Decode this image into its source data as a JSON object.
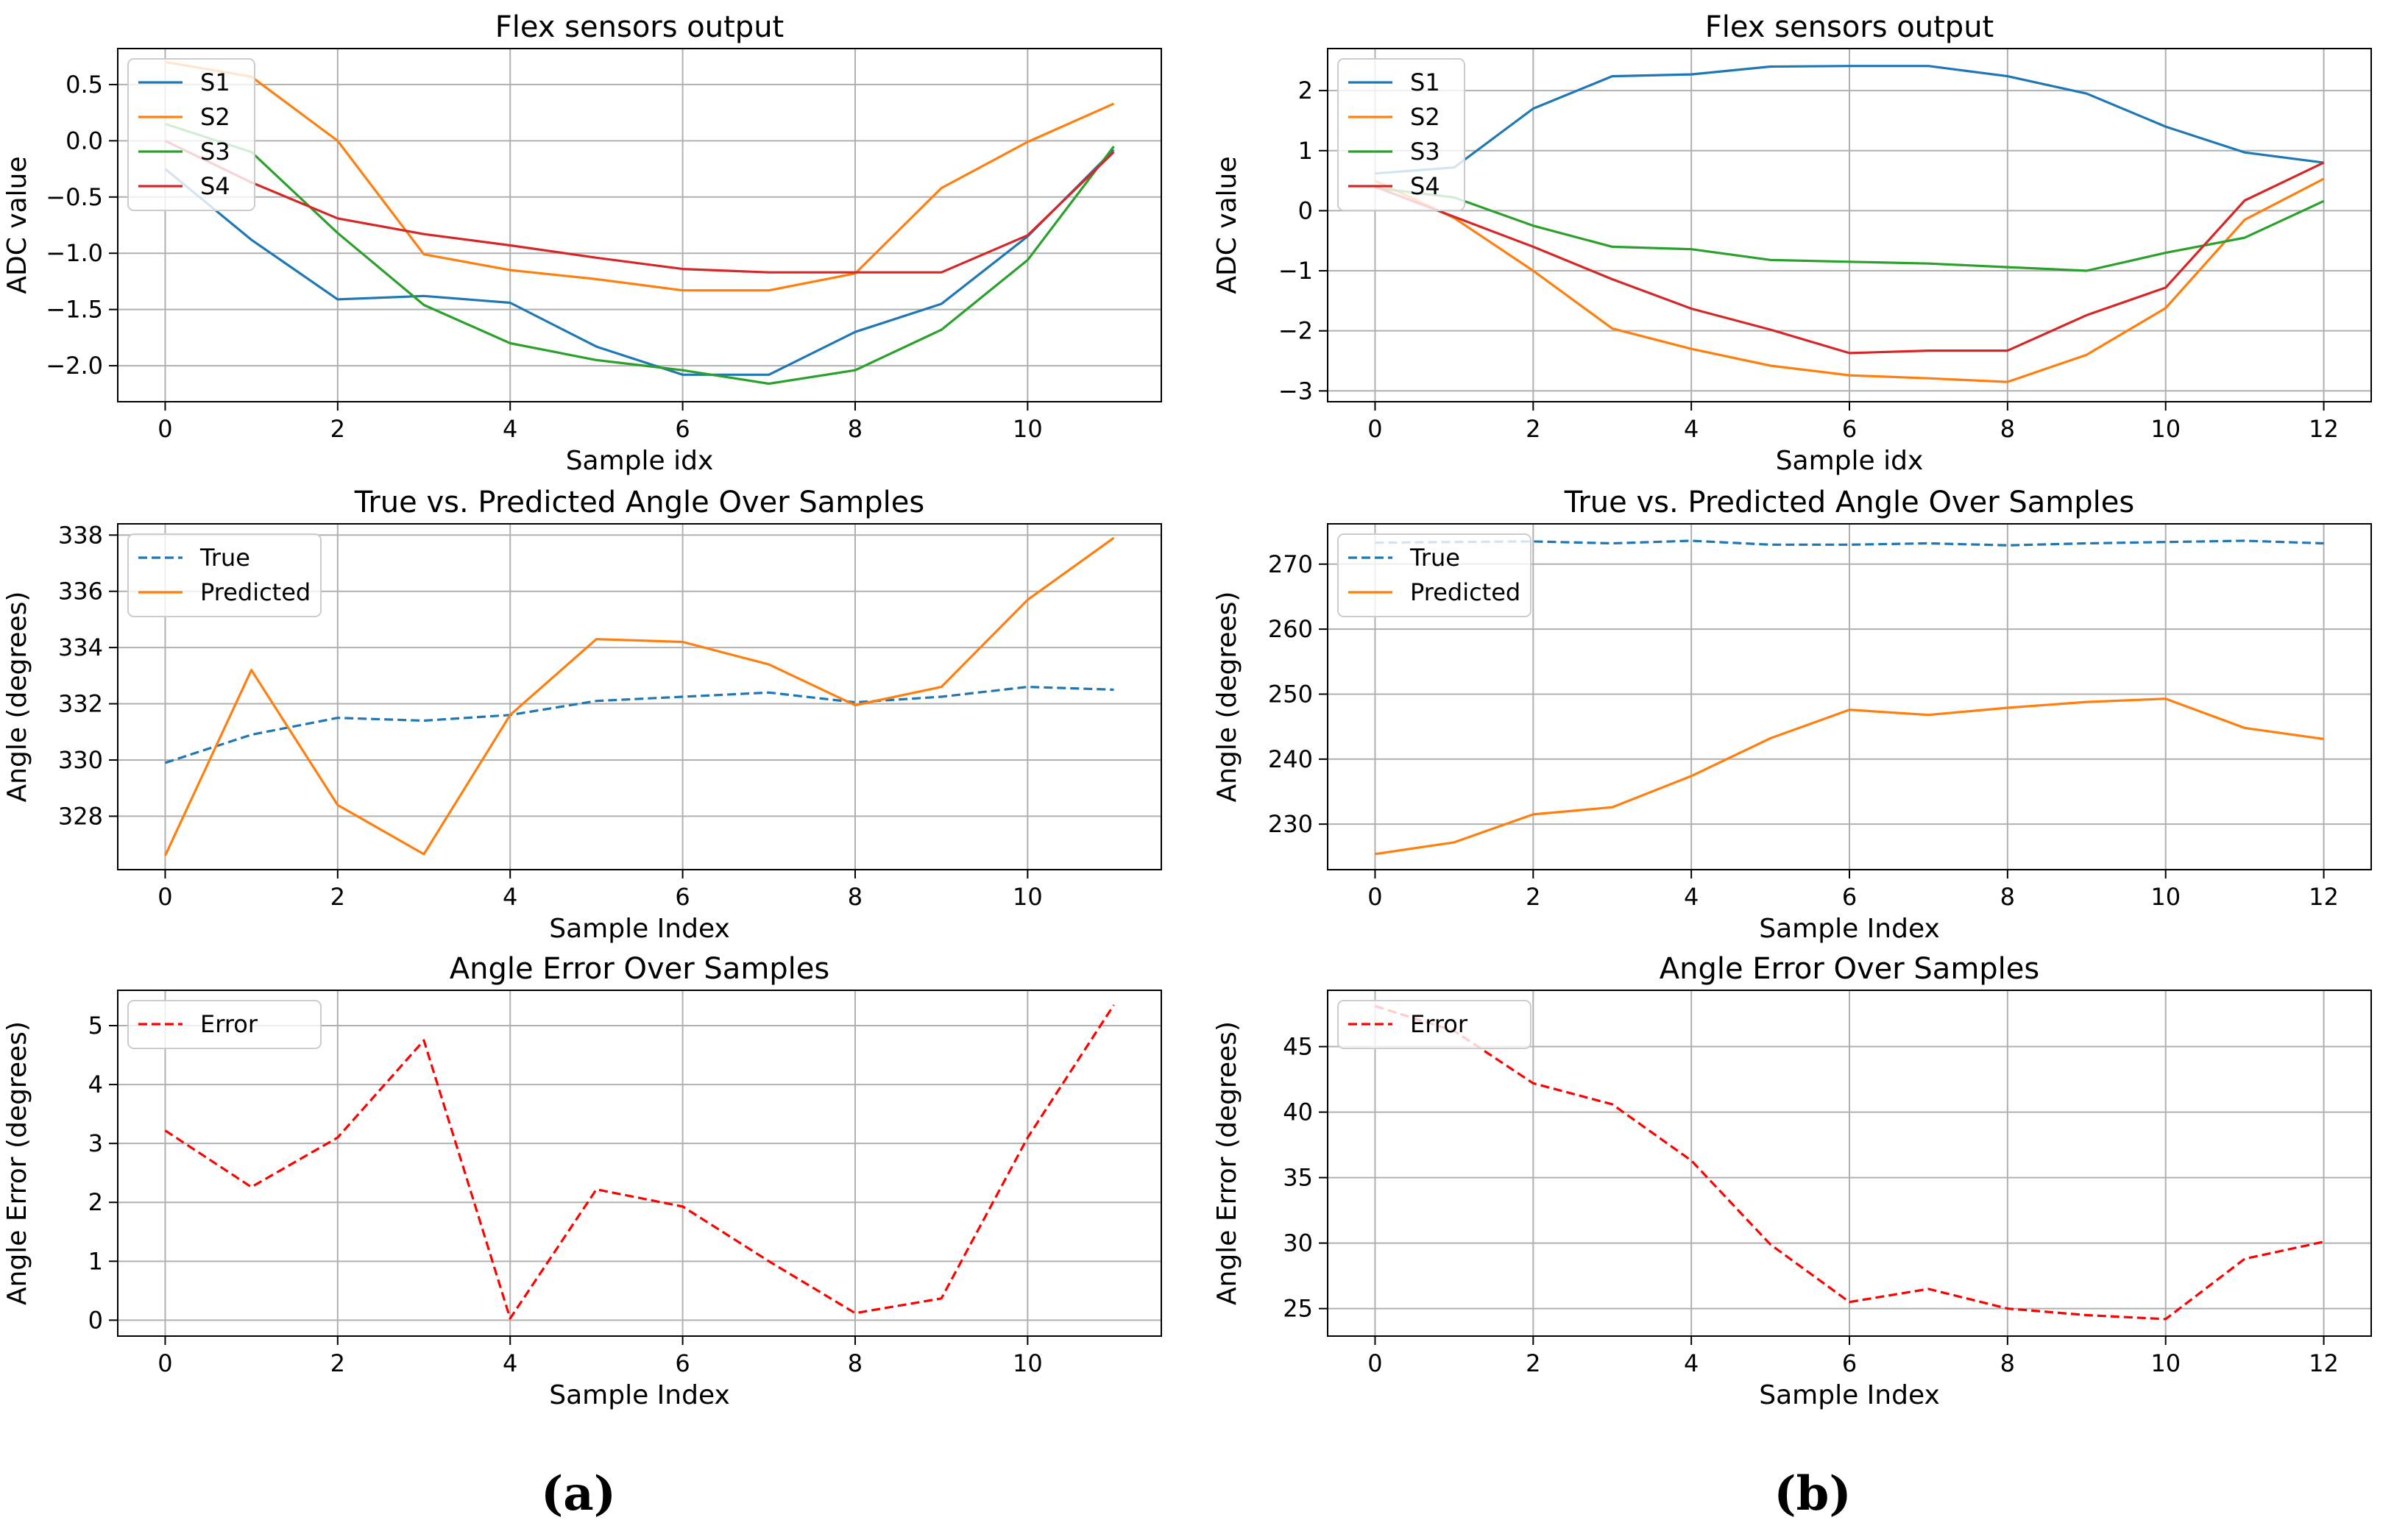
{
  "figure": {
    "captions": [
      "(a)",
      "(b)"
    ]
  },
  "colors": {
    "s1": "#1f77b4",
    "s2": "#ff7f0e",
    "s3": "#2ca02c",
    "s4": "#d62728",
    "true": "#1f77b4",
    "predicted": "#ff7f0e",
    "error": "#ff0000",
    "grid": "#b0b0b0"
  },
  "chart_data": [
    {
      "id": "a-flex",
      "type": "line",
      "title": "Flex sensors output",
      "xlabel": "Sample idx",
      "ylabel": "ADC value",
      "xlim": [
        -0.55,
        11.55
      ],
      "ylim": [
        -2.32,
        0.82
      ],
      "xticks": [
        0,
        2,
        4,
        6,
        8,
        10
      ],
      "xtick_labels": [
        "0",
        "2",
        "4",
        "6",
        "8",
        "10"
      ],
      "yticks": [
        0.5,
        0.0,
        -0.5,
        -1.0,
        -1.5,
        -2.0
      ],
      "ytick_labels": [
        "0.5",
        "0.0",
        "−0.5",
        "−1.0",
        "−1.5",
        "−2.0"
      ],
      "grid": true,
      "legend": "upper-left",
      "x": [
        0,
        1,
        2,
        3,
        4,
        5,
        6,
        7,
        8,
        9,
        10,
        11
      ],
      "series": [
        {
          "name": "S1",
          "color_key": "s1",
          "dash": "solid",
          "values": [
            -0.25,
            -0.88,
            -1.41,
            -1.38,
            -1.44,
            -1.83,
            -2.08,
            -2.08,
            -1.7,
            -1.45,
            -0.85,
            -0.08
          ]
        },
        {
          "name": "S2",
          "color_key": "s2",
          "dash": "solid",
          "values": [
            0.7,
            0.57,
            0.0,
            -1.01,
            -1.15,
            -1.23,
            -1.33,
            -1.33,
            -1.18,
            -0.42,
            -0.01,
            0.33
          ]
        },
        {
          "name": "S3",
          "color_key": "s3",
          "dash": "solid",
          "values": [
            0.15,
            -0.1,
            -0.82,
            -1.46,
            -1.8,
            -1.95,
            -2.04,
            -2.16,
            -2.04,
            -1.68,
            -1.06,
            -0.05
          ]
        },
        {
          "name": "S4",
          "color_key": "s4",
          "dash": "solid",
          "values": [
            0.0,
            -0.37,
            -0.69,
            -0.83,
            -0.93,
            -1.04,
            -1.14,
            -1.17,
            -1.17,
            -1.17,
            -0.84,
            -0.1
          ]
        }
      ]
    },
    {
      "id": "b-flex",
      "type": "line",
      "title": "Flex sensors output",
      "xlabel": "Sample idx",
      "ylabel": "ADC value",
      "xlim": [
        -0.6,
        12.6
      ],
      "ylim": [
        -3.18,
        2.7
      ],
      "xticks": [
        0,
        2,
        4,
        6,
        8,
        10,
        12
      ],
      "xtick_labels": [
        "0",
        "2",
        "4",
        "6",
        "8",
        "10",
        "12"
      ],
      "yticks": [
        2,
        1,
        0,
        -1,
        -2,
        -3
      ],
      "ytick_labels": [
        "2",
        "1",
        "0",
        "−1",
        "−2",
        "−3"
      ],
      "grid": true,
      "legend": "upper-left",
      "x": [
        0,
        1,
        2,
        3,
        4,
        5,
        6,
        7,
        8,
        9,
        10,
        11,
        12
      ],
      "series": [
        {
          "name": "S1",
          "color_key": "s1",
          "dash": "solid",
          "values": [
            0.62,
            0.72,
            1.7,
            2.24,
            2.27,
            2.4,
            2.41,
            2.41,
            2.24,
            1.95,
            1.4,
            0.97,
            0.8
          ]
        },
        {
          "name": "S2",
          "color_key": "s2",
          "dash": "solid",
          "values": [
            0.5,
            -0.12,
            -1.0,
            -1.96,
            -2.3,
            -2.58,
            -2.74,
            -2.79,
            -2.85,
            -2.4,
            -1.62,
            -0.15,
            0.53
          ]
        },
        {
          "name": "S3",
          "color_key": "s3",
          "dash": "solid",
          "values": [
            0.38,
            0.22,
            -0.25,
            -0.6,
            -0.64,
            -0.82,
            -0.85,
            -0.88,
            -0.94,
            -1.0,
            -0.7,
            -0.45,
            0.16
          ]
        },
        {
          "name": "S4",
          "color_key": "s4",
          "dash": "solid",
          "values": [
            0.4,
            -0.1,
            -0.6,
            -1.14,
            -1.63,
            -1.98,
            -2.37,
            -2.33,
            -2.33,
            -1.74,
            -1.28,
            0.17,
            0.8
          ]
        }
      ]
    },
    {
      "id": "a-angle",
      "type": "line",
      "title": "True vs. Predicted Angle Over Samples",
      "xlabel": "Sample Index",
      "ylabel": "Angle (degrees)",
      "xlim": [
        -0.55,
        11.55
      ],
      "ylim": [
        326.1,
        338.4
      ],
      "xticks": [
        0,
        2,
        4,
        6,
        8,
        10
      ],
      "xtick_labels": [
        "0",
        "2",
        "4",
        "6",
        "8",
        "10"
      ],
      "yticks": [
        338,
        336,
        334,
        332,
        330,
        328
      ],
      "ytick_labels": [
        "338",
        "336",
        "334",
        "332",
        "330",
        "328"
      ],
      "grid": true,
      "legend": "upper-left",
      "x": [
        0,
        1,
        2,
        3,
        4,
        5,
        6,
        7,
        8,
        9,
        10,
        11
      ],
      "series": [
        {
          "name": "True",
          "color_key": "true",
          "dash": "dashed",
          "values": [
            329.9,
            330.9,
            331.5,
            331.4,
            331.6,
            332.1,
            332.25,
            332.4,
            332.05,
            332.25,
            332.6,
            332.5
          ]
        },
        {
          "name": "Predicted",
          "color_key": "predicted",
          "dash": "solid",
          "values": [
            326.6,
            333.2,
            328.4,
            326.65,
            331.6,
            334.3,
            334.2,
            333.4,
            331.95,
            332.6,
            335.7,
            337.9
          ]
        }
      ]
    },
    {
      "id": "b-angle",
      "type": "line",
      "title": "True vs. Predicted Angle Over Samples",
      "xlabel": "Sample Index",
      "ylabel": "Angle (degrees)",
      "xlim": [
        -0.6,
        12.6
      ],
      "ylim": [
        223.0,
        276.2
      ],
      "xticks": [
        0,
        2,
        4,
        6,
        8,
        10,
        12
      ],
      "xtick_labels": [
        "0",
        "2",
        "4",
        "6",
        "8",
        "10",
        "12"
      ],
      "yticks": [
        270,
        260,
        250,
        240,
        230
      ],
      "ytick_labels": [
        "270",
        "260",
        "250",
        "240",
        "230"
      ],
      "grid": true,
      "legend": "upper-left",
      "x": [
        0,
        1,
        2,
        3,
        4,
        5,
        6,
        7,
        8,
        9,
        10,
        11,
        12
      ],
      "series": [
        {
          "name": "True",
          "color_key": "true",
          "dash": "dashed",
          "values": [
            273.3,
            273.4,
            273.5,
            273.2,
            273.6,
            273.0,
            273.0,
            273.2,
            272.9,
            273.2,
            273.4,
            273.6,
            273.2
          ]
        },
        {
          "name": "Predicted",
          "color_key": "predicted",
          "dash": "solid",
          "values": [
            225.4,
            227.2,
            231.5,
            232.6,
            237.4,
            243.2,
            247.6,
            246.8,
            247.9,
            248.8,
            249.3,
            244.8,
            243.1
          ]
        }
      ]
    },
    {
      "id": "a-error",
      "type": "line",
      "title": "Angle Error Over Samples",
      "xlabel": "Sample Index",
      "ylabel": "Angle Error (degrees)",
      "xlim": [
        -0.55,
        11.55
      ],
      "ylim": [
        -0.27,
        5.6
      ],
      "xticks": [
        0,
        2,
        4,
        6,
        8,
        10
      ],
      "xtick_labels": [
        "0",
        "2",
        "4",
        "6",
        "8",
        "10"
      ],
      "yticks": [
        5,
        4,
        3,
        2,
        1,
        0
      ],
      "ytick_labels": [
        "5",
        "4",
        "3",
        "2",
        "1",
        "0"
      ],
      "grid": true,
      "legend": "upper-left",
      "x": [
        0,
        1,
        2,
        3,
        4,
        5,
        6,
        7,
        8,
        9,
        10,
        11
      ],
      "series": [
        {
          "name": "Error",
          "color_key": "error",
          "dash": "dashed",
          "values": [
            3.22,
            2.26,
            3.1,
            4.75,
            0.03,
            2.22,
            1.93,
            1.0,
            0.12,
            0.37,
            3.1,
            5.35
          ]
        }
      ]
    },
    {
      "id": "b-error",
      "type": "line",
      "title": "Angle Error Over Samples",
      "xlabel": "Sample Index",
      "ylabel": "Angle Error (degrees)",
      "xlim": [
        -0.6,
        12.6
      ],
      "ylim": [
        22.9,
        49.3
      ],
      "xticks": [
        0,
        2,
        4,
        6,
        8,
        10,
        12
      ],
      "xtick_labels": [
        "0",
        "2",
        "4",
        "6",
        "8",
        "10",
        "12"
      ],
      "yticks": [
        45,
        40,
        35,
        30,
        25
      ],
      "ytick_labels": [
        "45",
        "40",
        "35",
        "30",
        "25"
      ],
      "grid": true,
      "legend": "upper-left",
      "x": [
        0,
        1,
        2,
        3,
        4,
        5,
        6,
        7,
        8,
        9,
        10,
        11,
        12
      ],
      "series": [
        {
          "name": "Error",
          "color_key": "error",
          "dash": "dashed",
          "values": [
            48.1,
            46.2,
            42.2,
            40.6,
            36.3,
            29.9,
            25.5,
            26.5,
            25.0,
            24.5,
            24.2,
            28.8,
            30.1
          ]
        }
      ]
    }
  ]
}
